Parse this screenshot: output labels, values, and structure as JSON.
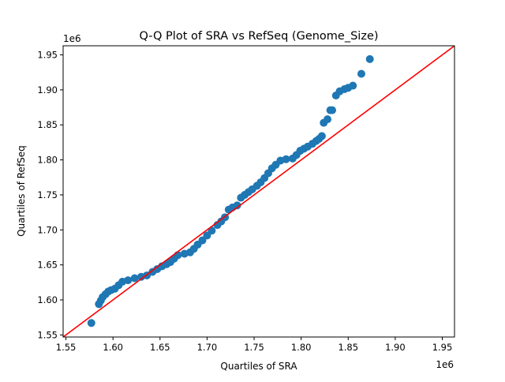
{
  "chart_data": {
    "type": "scatter",
    "title": "Q-Q Plot of SRA vs RefSeq (Genome_Size)",
    "xlabel": "Quartiles of SRA",
    "ylabel": "Quartiles of RefSeq",
    "x_offset_label": "1e6",
    "y_offset_label": "1e6",
    "xlim": [
      1.547,
      1.963
    ],
    "ylim": [
      1.547,
      1.963
    ],
    "xticks": [
      "1.55",
      "1.60",
      "1.65",
      "1.70",
      "1.75",
      "1.80",
      "1.85",
      "1.90",
      "1.95"
    ],
    "yticks": [
      "1.55",
      "1.60",
      "1.65",
      "1.70",
      "1.75",
      "1.80",
      "1.85",
      "1.90",
      "1.95"
    ],
    "grid": false,
    "point_color": "#1f77b4",
    "reference_line": {
      "type": "y=x",
      "color": "#ff0000"
    },
    "points": [
      [
        1.577,
        1.567
      ],
      [
        1.585,
        1.594
      ],
      [
        1.587,
        1.599
      ],
      [
        1.589,
        1.604
      ],
      [
        1.592,
        1.608
      ],
      [
        1.595,
        1.612
      ],
      [
        1.598,
        1.614
      ],
      [
        1.602,
        1.616
      ],
      [
        1.606,
        1.621
      ],
      [
        1.61,
        1.626
      ],
      [
        1.616,
        1.628
      ],
      [
        1.623,
        1.631
      ],
      [
        1.63,
        1.633
      ],
      [
        1.636,
        1.635
      ],
      [
        1.642,
        1.64
      ],
      [
        1.647,
        1.644
      ],
      [
        1.652,
        1.648
      ],
      [
        1.657,
        1.651
      ],
      [
        1.661,
        1.654
      ],
      [
        1.665,
        1.659
      ],
      [
        1.669,
        1.664
      ],
      [
        1.676,
        1.666
      ],
      [
        1.682,
        1.668
      ],
      [
        1.686,
        1.673
      ],
      [
        1.69,
        1.679
      ],
      [
        1.695,
        1.685
      ],
      [
        1.7,
        1.692
      ],
      [
        1.705,
        1.699
      ],
      [
        1.711,
        1.707
      ],
      [
        1.715,
        1.712
      ],
      [
        1.719,
        1.718
      ],
      [
        1.723,
        1.729
      ],
      [
        1.727,
        1.732
      ],
      [
        1.732,
        1.735
      ],
      [
        1.736,
        1.746
      ],
      [
        1.74,
        1.75
      ],
      [
        1.744,
        1.754
      ],
      [
        1.748,
        1.758
      ],
      [
        1.753,
        1.763
      ],
      [
        1.757,
        1.768
      ],
      [
        1.761,
        1.774
      ],
      [
        1.765,
        1.781
      ],
      [
        1.769,
        1.788
      ],
      [
        1.773,
        1.793
      ],
      [
        1.778,
        1.799
      ],
      [
        1.784,
        1.801
      ],
      [
        1.791,
        1.802
      ],
      [
        1.795,
        1.807
      ],
      [
        1.799,
        1.813
      ],
      [
        1.803,
        1.816
      ],
      [
        1.807,
        1.819
      ],
      [
        1.812,
        1.823
      ],
      [
        1.816,
        1.827
      ],
      [
        1.819,
        1.83
      ],
      [
        1.822,
        1.834
      ],
      [
        1.824,
        1.853
      ],
      [
        1.828,
        1.858
      ],
      [
        1.831,
        1.871
      ],
      [
        1.833,
        1.871
      ],
      [
        1.837,
        1.892
      ],
      [
        1.841,
        1.898
      ],
      [
        1.846,
        1.901
      ],
      [
        1.85,
        1.903
      ],
      [
        1.855,
        1.906
      ],
      [
        1.864,
        1.923
      ],
      [
        1.873,
        1.944
      ]
    ]
  }
}
